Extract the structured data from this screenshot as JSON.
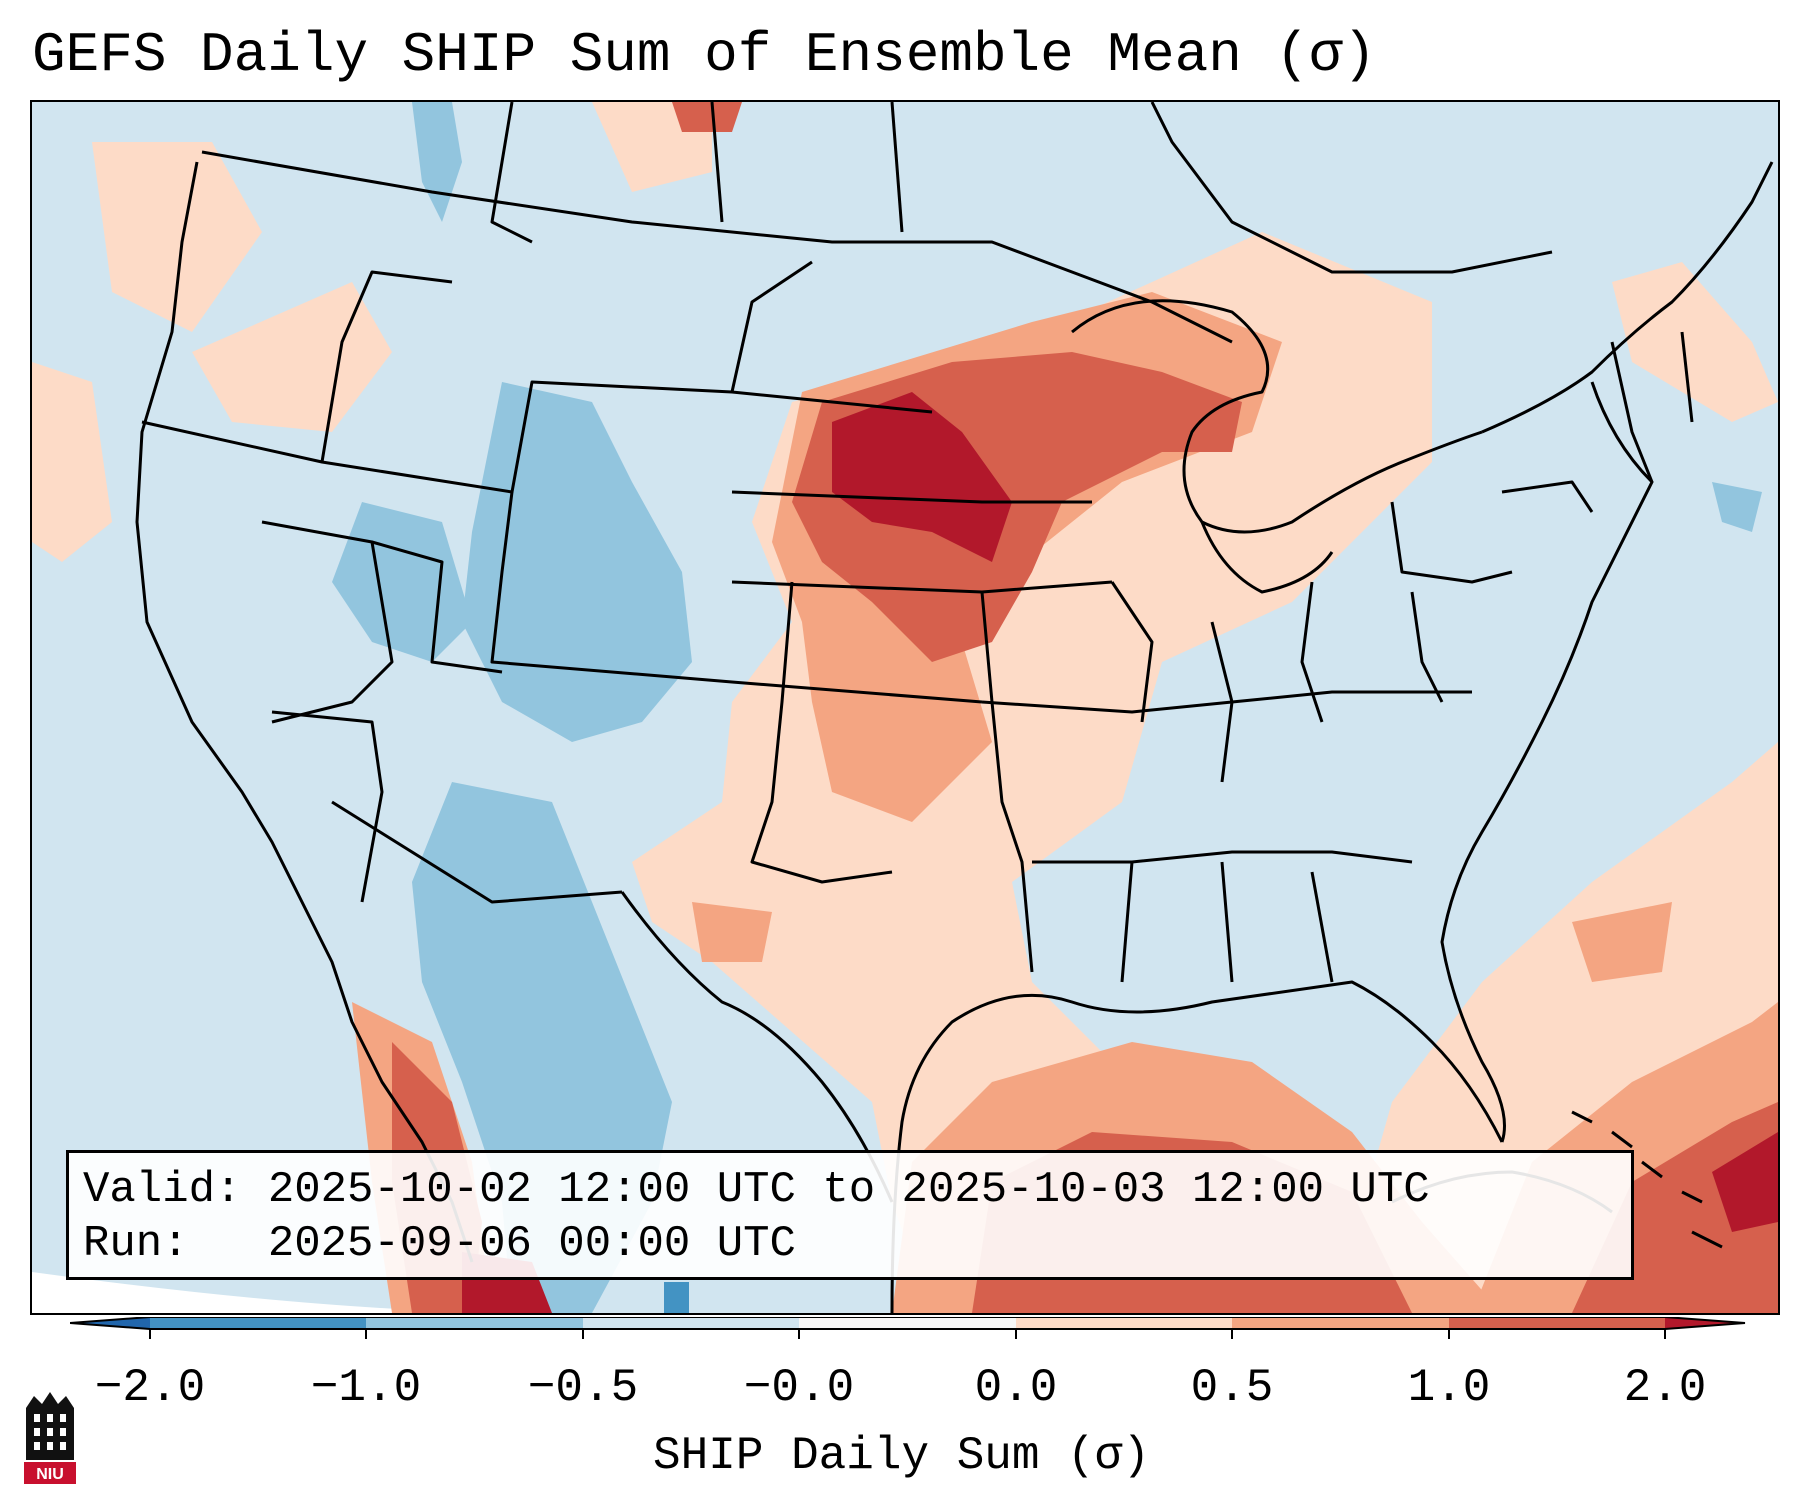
{
  "title": "GEFS Daily SHIP Sum of Ensemble Mean (σ)",
  "info": {
    "valid_label": "Valid:",
    "valid_value": "2025-10-02 12:00 UTC to 2025-10-03 12:00 UTC",
    "run_label": "Run:  ",
    "run_value": "2025-09-06 00:00 UTC"
  },
  "colorbar": {
    "label": "SHIP Daily Sum (σ)",
    "ticks": [
      "−2.0",
      "−1.0",
      "−0.5",
      "−0.0",
      "0.0",
      "0.5",
      "1.0",
      "2.0"
    ],
    "colors": [
      "#4393c3",
      "#92c5de",
      "#d1e5f0",
      "#f7f7f7",
      "#fddbc7",
      "#f4a582",
      "#d6604d"
    ],
    "extend_low_color": "#2166ac",
    "extend_high_color": "#b2182b"
  },
  "map": {
    "background_color": "#d1e5f0",
    "land_border_color": "#000000"
  },
  "logo": {
    "text": "NIU"
  }
}
